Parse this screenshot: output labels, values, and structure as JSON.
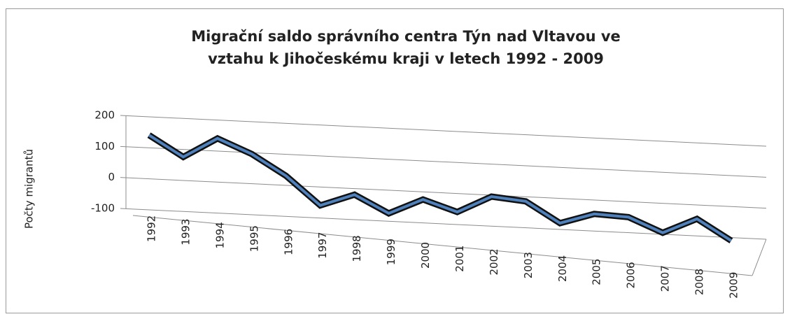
{
  "chart_data": {
    "type": "line3d",
    "title": "Migrační saldo správního centra Týn nad Vltavou ve vztahu k Jihočeskému kraji v letech 1992 - 2009",
    "y_label": "Počty migrantů",
    "categories": [
      "1992",
      "1993",
      "1994",
      "1995",
      "1996",
      "1997",
      "1998",
      "1999",
      "2000",
      "2001",
      "2002",
      "2003",
      "2004",
      "2005",
      "2006",
      "2007",
      "2008",
      "2009"
    ],
    "values": [
      140,
      75,
      140,
      95,
      30,
      -60,
      -20,
      -75,
      -25,
      -60,
      -5,
      -15,
      -80,
      -45,
      -50,
      -95,
      -45,
      -110
    ],
    "color": "#4f81bd",
    "ylim": [
      -100,
      200
    ],
    "yticks": [
      -100,
      0,
      100,
      200
    ],
    "grid": true
  }
}
